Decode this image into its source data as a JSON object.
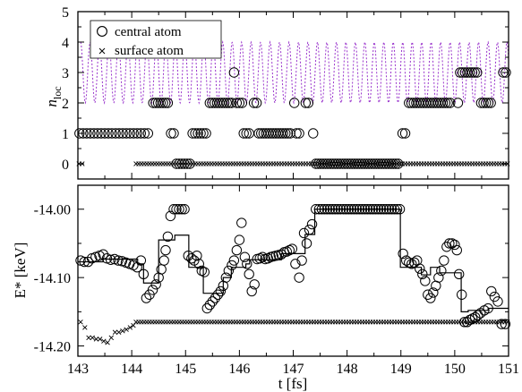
{
  "chart_data": [
    {
      "type": "scatter",
      "panel": "top",
      "ylabel": "n",
      "ylabel_sub": "loc",
      "xlim": [
        143,
        151
      ],
      "ylim": [
        -0.5,
        5
      ],
      "yticks": [
        "0",
        "1",
        "2",
        "3",
        "4",
        "5"
      ],
      "legend_placement": "top-left",
      "legend": [
        {
          "name": "central atom",
          "marker": "circle"
        },
        {
          "name": "surface atom",
          "marker": "cross"
        }
      ],
      "oscillation": {
        "color": "#9933cc",
        "style": "dotted",
        "low": 2,
        "high": 4,
        "period_fs": 0.176,
        "x_range": [
          143.05,
          151
        ]
      },
      "series": [
        {
          "name": "central atom",
          "marker": "circle",
          "segments": [
            {
              "x0": 143.03,
              "x1": 144.33,
              "y": 1,
              "step": 0.067
            },
            {
              "x0": 144.4,
              "x1": 144.67,
              "y": 2,
              "step": 0.045
            },
            {
              "x0": 144.73,
              "x1": 144.78,
              "y": 1,
              "step": 0.05
            },
            {
              "x0": 144.83,
              "x1": 145.08,
              "y": 0,
              "step": 0.05
            },
            {
              "x0": 145.13,
              "x1": 145.38,
              "y": 1,
              "step": 0.05
            },
            {
              "x0": 145.45,
              "x1": 145.86,
              "y": 2,
              "step": 0.045
            },
            {
              "x0": 145.9,
              "x1": 145.9,
              "y": 3,
              "step": 0.05
            },
            {
              "x0": 145.95,
              "x1": 146.06,
              "y": 2,
              "step": 0.05
            },
            {
              "x0": 146.08,
              "x1": 146.18,
              "y": 1,
              "step": 0.05
            },
            {
              "x0": 146.27,
              "x1": 146.32,
              "y": 2,
              "step": 0.05
            },
            {
              "x0": 146.36,
              "x1": 146.98,
              "y": 1,
              "step": 0.045
            },
            {
              "x0": 147.02,
              "x1": 147.02,
              "y": 2,
              "step": 0.05
            },
            {
              "x0": 147.06,
              "x1": 147.14,
              "y": 1,
              "step": 0.05
            },
            {
              "x0": 147.23,
              "x1": 147.31,
              "y": 2,
              "step": 0.05
            },
            {
              "x0": 147.37,
              "x1": 147.37,
              "y": 1,
              "step": 0.05
            },
            {
              "x0": 147.42,
              "x1": 148.98,
              "y": 0,
              "step": 0.045
            },
            {
              "x0": 149.03,
              "x1": 149.11,
              "y": 1,
              "step": 0.05
            },
            {
              "x0": 149.15,
              "x1": 149.94,
              "y": 2,
              "step": 0.045
            },
            {
              "x0": 150.06,
              "x1": 150.06,
              "y": 2,
              "step": 0.05
            },
            {
              "x0": 150.1,
              "x1": 150.42,
              "y": 3,
              "step": 0.045
            },
            {
              "x0": 150.49,
              "x1": 150.68,
              "y": 2,
              "step": 0.045
            },
            {
              "x0": 150.9,
              "x1": 150.96,
              "y": 3,
              "step": 0.05
            }
          ]
        },
        {
          "name": "surface atom",
          "marker": "cross",
          "segments": [
            {
              "x0": 143.02,
              "x1": 143.08,
              "y": 0,
              "step": 0.06
            },
            {
              "x0": 144.08,
              "x1": 151.0,
              "y": 0,
              "step": 0.05
            }
          ]
        }
      ]
    },
    {
      "type": "scatter",
      "panel": "bottom",
      "ylabel": "E* [keV]",
      "xlabel": "t [fs]",
      "xlim": [
        143,
        151
      ],
      "ylim": [
        -14.215,
        -13.965
      ],
      "xticks": [
        "143",
        "144",
        "145",
        "146",
        "147",
        "148",
        "149",
        "150",
        "151"
      ],
      "yticks": [
        {
          "value": -14.0,
          "label": "-14.00"
        },
        {
          "value": -14.1,
          "label": "-14.10"
        },
        {
          "value": -14.2,
          "label": "-14.20"
        }
      ],
      "central_atom_circles": [
        [
          143.05,
          -14.075
        ],
        [
          143.12,
          -14.077
        ],
        [
          143.19,
          -14.077
        ],
        [
          143.26,
          -14.072
        ],
        [
          143.33,
          -14.07
        ],
        [
          143.4,
          -14.068
        ],
        [
          143.47,
          -14.066
        ],
        [
          143.54,
          -14.072
        ],
        [
          143.61,
          -14.074
        ],
        [
          143.68,
          -14.073
        ],
        [
          143.75,
          -14.075
        ],
        [
          143.82,
          -14.076
        ],
        [
          143.89,
          -14.078
        ],
        [
          143.96,
          -14.08
        ],
        [
          144.03,
          -14.082
        ],
        [
          144.1,
          -14.085
        ],
        [
          144.17,
          -14.075
        ],
        [
          144.22,
          -14.095
        ],
        [
          144.27,
          -14.13
        ],
        [
          144.33,
          -14.125
        ],
        [
          144.39,
          -14.118
        ],
        [
          144.45,
          -14.11
        ],
        [
          144.5,
          -14.1
        ],
        [
          144.55,
          -14.088
        ],
        [
          144.6,
          -14.075
        ],
        [
          144.63,
          -14.06
        ],
        [
          144.67,
          -14.04
        ],
        [
          144.72,
          -14.01
        ],
        [
          144.78,
          -14.0
        ],
        [
          144.83,
          -14.0
        ],
        [
          144.88,
          -14.0
        ],
        [
          144.93,
          -14.0
        ],
        [
          144.98,
          -14.0
        ],
        [
          145.05,
          -14.068
        ],
        [
          145.11,
          -14.072
        ],
        [
          145.16,
          -14.075
        ],
        [
          145.21,
          -14.068
        ],
        [
          145.25,
          -14.08
        ],
        [
          145.3,
          -14.09
        ],
        [
          145.35,
          -14.092
        ],
        [
          145.4,
          -14.145
        ],
        [
          145.45,
          -14.14
        ],
        [
          145.5,
          -14.135
        ],
        [
          145.55,
          -14.13
        ],
        [
          145.6,
          -14.125
        ],
        [
          145.65,
          -14.12
        ],
        [
          145.7,
          -14.112
        ],
        [
          145.75,
          -14.1
        ],
        [
          145.8,
          -14.09
        ],
        [
          145.86,
          -14.082
        ],
        [
          145.9,
          -14.075
        ],
        [
          145.95,
          -14.06
        ],
        [
          146.0,
          -14.045
        ],
        [
          146.04,
          -14.02
        ],
        [
          146.1,
          -14.07
        ],
        [
          146.14,
          -14.08
        ],
        [
          146.18,
          -14.095
        ],
        [
          146.23,
          -14.12
        ],
        [
          146.28,
          -14.11
        ],
        [
          146.33,
          -14.073
        ],
        [
          146.38,
          -14.072
        ],
        [
          146.43,
          -14.07
        ],
        [
          146.48,
          -14.073
        ],
        [
          146.53,
          -14.072
        ],
        [
          146.58,
          -14.07
        ],
        [
          146.63,
          -14.069
        ],
        [
          146.68,
          -14.068
        ],
        [
          146.73,
          -14.067
        ],
        [
          146.78,
          -14.066
        ],
        [
          146.83,
          -14.063
        ],
        [
          146.88,
          -14.062
        ],
        [
          146.93,
          -14.06
        ],
        [
          146.98,
          -14.058
        ],
        [
          147.04,
          -14.08
        ],
        [
          147.11,
          -14.1
        ],
        [
          147.16,
          -14.075
        ],
        [
          147.2,
          -14.035
        ],
        [
          147.25,
          -14.05
        ],
        [
          147.3,
          -14.03
        ],
        [
          147.35,
          -14.022
        ],
        [
          147.42,
          -14.0
        ],
        [
          147.48,
          -14.0
        ],
        [
          147.53,
          -14.0
        ],
        [
          147.58,
          -14.0
        ],
        [
          147.63,
          -14.0
        ],
        [
          147.68,
          -14.0
        ],
        [
          147.73,
          -14.0
        ],
        [
          147.78,
          -14.0
        ],
        [
          147.83,
          -14.0
        ],
        [
          147.88,
          -14.0
        ],
        [
          147.93,
          -14.0
        ],
        [
          147.98,
          -14.0
        ],
        [
          148.03,
          -14.0
        ],
        [
          148.08,
          -14.0
        ],
        [
          148.13,
          -14.0
        ],
        [
          148.18,
          -14.0
        ],
        [
          148.23,
          -14.0
        ],
        [
          148.28,
          -14.0
        ],
        [
          148.33,
          -14.0
        ],
        [
          148.38,
          -14.0
        ],
        [
          148.43,
          -14.0
        ],
        [
          148.48,
          -14.0
        ],
        [
          148.53,
          -14.0
        ],
        [
          148.58,
          -14.0
        ],
        [
          148.63,
          -14.0
        ],
        [
          148.68,
          -14.0
        ],
        [
          148.73,
          -14.0
        ],
        [
          148.78,
          -14.0
        ],
        [
          148.83,
          -14.0
        ],
        [
          148.88,
          -14.0
        ],
        [
          148.93,
          -14.0
        ],
        [
          148.98,
          -14.0
        ],
        [
          149.04,
          -14.065
        ],
        [
          149.1,
          -14.075
        ],
        [
          149.15,
          -14.078
        ],
        [
          149.2,
          -14.08
        ],
        [
          149.25,
          -14.078
        ],
        [
          149.3,
          -14.075
        ],
        [
          149.35,
          -14.087
        ],
        [
          149.4,
          -14.095
        ],
        [
          149.45,
          -14.105
        ],
        [
          149.5,
          -14.125
        ],
        [
          149.55,
          -14.13
        ],
        [
          149.6,
          -14.122
        ],
        [
          149.65,
          -14.112
        ],
        [
          149.7,
          -14.1
        ],
        [
          149.75,
          -14.09
        ],
        [
          149.8,
          -14.075
        ],
        [
          149.85,
          -14.055
        ],
        [
          149.9,
          -14.05
        ],
        [
          149.95,
          -14.05
        ],
        [
          150.0,
          -14.052
        ],
        [
          150.04,
          -14.06
        ],
        [
          150.08,
          -14.095
        ],
        [
          150.13,
          -14.125
        ],
        [
          150.18,
          -14.165
        ],
        [
          150.23,
          -14.165
        ],
        [
          150.28,
          -14.162
        ],
        [
          150.33,
          -14.16
        ],
        [
          150.38,
          -14.158
        ],
        [
          150.43,
          -14.155
        ],
        [
          150.48,
          -14.152
        ],
        [
          150.55,
          -14.148
        ],
        [
          150.62,
          -14.145
        ],
        [
          150.68,
          -14.12
        ],
        [
          150.74,
          -14.128
        ],
        [
          150.8,
          -14.135
        ],
        [
          150.87,
          -14.168
        ],
        [
          150.94,
          -14.168
        ]
      ],
      "surface_atom_crosses": [
        [
          143.05,
          -14.165
        ],
        [
          143.13,
          -14.173
        ],
        [
          143.2,
          -14.188
        ],
        [
          143.27,
          -14.188
        ],
        [
          143.34,
          -14.19
        ],
        [
          143.41,
          -14.19
        ],
        [
          143.48,
          -14.193
        ],
        [
          143.55,
          -14.195
        ],
        [
          143.62,
          -14.188
        ],
        [
          143.69,
          -14.18
        ],
        [
          143.76,
          -14.18
        ],
        [
          143.83,
          -14.178
        ],
        [
          143.9,
          -14.176
        ],
        [
          143.97,
          -14.173
        ],
        [
          144.03,
          -14.17
        ],
        {
          "x0": 144.08,
          "x1": 151.0,
          "y": -14.165,
          "step": 0.05
        }
      ],
      "mean_energy_step": [
        [
          143.0,
          -14.077
        ],
        [
          143.47,
          -14.077
        ],
        [
          143.47,
          -14.073
        ],
        [
          144.11,
          -14.073
        ],
        [
          144.11,
          -14.08
        ],
        [
          144.22,
          -14.08
        ],
        [
          144.22,
          -14.108
        ],
        [
          144.5,
          -14.108
        ],
        [
          144.5,
          -14.045
        ],
        [
          144.8,
          -14.045
        ],
        [
          144.8,
          -14.038
        ],
        [
          145.06,
          -14.038
        ],
        [
          145.06,
          -14.085
        ],
        [
          145.33,
          -14.085
        ],
        [
          145.33,
          -14.123
        ],
        [
          145.7,
          -14.123
        ],
        [
          145.7,
          -14.1
        ],
        [
          145.85,
          -14.1
        ],
        [
          145.85,
          -14.085
        ],
        [
          146.12,
          -14.085
        ],
        [
          146.12,
          -14.08
        ],
        [
          146.19,
          -14.08
        ],
        [
          146.19,
          -14.074
        ],
        [
          146.78,
          -14.074
        ],
        [
          146.78,
          -14.065
        ],
        [
          147.22,
          -14.065
        ],
        [
          147.22,
          -14.037
        ],
        [
          147.4,
          -14.037
        ],
        [
          147.4,
          -14.0
        ],
        [
          148.99,
          -14.0
        ],
        [
          148.99,
          -14.085
        ],
        [
          149.38,
          -14.085
        ],
        [
          149.38,
          -14.096
        ],
        [
          149.55,
          -14.096
        ],
        [
          149.55,
          -14.085
        ],
        [
          149.72,
          -14.085
        ],
        [
          149.72,
          -14.093
        ],
        [
          150.12,
          -14.093
        ],
        [
          150.12,
          -14.15
        ],
        [
          150.25,
          -14.15
        ],
        [
          150.25,
          -14.148
        ],
        [
          150.62,
          -14.148
        ],
        [
          150.62,
          -14.145
        ],
        [
          151.0,
          -14.145
        ]
      ]
    }
  ]
}
